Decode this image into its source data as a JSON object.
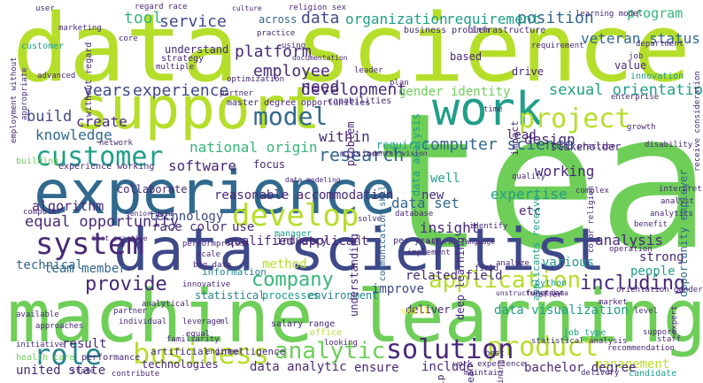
{
  "palette": {
    "lime": "#b5de2b",
    "green": "#6ece58",
    "teal_green": "#35b779",
    "teal": "#1f9e89",
    "blue_teal": "#26828e",
    "blue": "#31688e",
    "indigo": "#3e4989",
    "purple": "#482878",
    "dark_purple": "#440154",
    "yellow": "#fde725"
  },
  "words": [
    {
      "text": "data science",
      "color": "lime"
    },
    {
      "text": "team",
      "color": "green"
    },
    {
      "text": "machine learning",
      "color": "green"
    },
    {
      "text": "data scientist",
      "color": "indigo"
    },
    {
      "text": "experience",
      "color": "blue"
    },
    {
      "text": "support",
      "color": "lime"
    },
    {
      "text": "work",
      "color": "teal"
    },
    {
      "text": "customer",
      "color": "teal"
    },
    {
      "text": "project",
      "color": "lime"
    },
    {
      "text": "develop",
      "color": "lime"
    },
    {
      "text": "system",
      "color": "purple"
    },
    {
      "text": "product",
      "color": "lime"
    },
    {
      "text": "solution",
      "color": "purple"
    },
    {
      "text": "business",
      "color": "lime"
    },
    {
      "text": "role",
      "color": "blue_teal"
    },
    {
      "text": "analytic",
      "color": "green"
    },
    {
      "text": "application",
      "color": "lime"
    },
    {
      "text": "model",
      "color": "blue"
    },
    {
      "text": "research",
      "color": "blue"
    },
    {
      "text": "company",
      "color": "teal_green"
    },
    {
      "text": "provide",
      "color": "purple"
    },
    {
      "text": "including",
      "color": "purple"
    },
    {
      "text": "computer science",
      "color": "blue"
    },
    {
      "text": "position",
      "color": "blue"
    },
    {
      "text": "service",
      "color": "indigo"
    },
    {
      "text": "tool",
      "color": "teal_green"
    },
    {
      "text": "data",
      "color": "indigo"
    },
    {
      "text": "organization",
      "color": "teal"
    },
    {
      "text": "requirement",
      "color": "teal"
    },
    {
      "text": "platform",
      "color": "purple"
    },
    {
      "text": "employee",
      "color": "purple"
    },
    {
      "text": "years",
      "color": "indigo"
    },
    {
      "text": "experience",
      "color": "indigo"
    },
    {
      "text": "need",
      "color": "purple"
    },
    {
      "text": "development",
      "color": "purple"
    },
    {
      "text": "gender identity",
      "color": "green"
    },
    {
      "text": "sexual orientation",
      "color": "teal"
    },
    {
      "text": "veteran status",
      "color": "blue"
    },
    {
      "text": "program",
      "color": "teal_green"
    },
    {
      "text": "build",
      "color": "indigo"
    },
    {
      "text": "create",
      "color": "purple"
    },
    {
      "text": "knowledge",
      "color": "blue"
    },
    {
      "text": "national origin",
      "color": "teal_green"
    },
    {
      "text": "software",
      "color": "purple"
    },
    {
      "text": "equal opportunity",
      "color": "purple"
    },
    {
      "text": "technology",
      "color": "indigo"
    },
    {
      "text": "algorithm",
      "color": "purple"
    },
    {
      "text": "team member",
      "color": "blue"
    },
    {
      "text": "technical",
      "color": "blue"
    },
    {
      "text": "analysis",
      "color": "purple"
    },
    {
      "text": "design",
      "color": "purple"
    },
    {
      "text": "insight",
      "color": "purple"
    },
    {
      "text": "data set",
      "color": "blue"
    },
    {
      "text": "expertise",
      "color": "teal"
    },
    {
      "text": "working",
      "color": "purple"
    },
    {
      "text": "new",
      "color": "purple"
    },
    {
      "text": "well",
      "color": "teal"
    },
    {
      "text": "within",
      "color": "purple"
    },
    {
      "text": "related field",
      "color": "purple"
    },
    {
      "text": "improve",
      "color": "indigo"
    },
    {
      "text": "data visualization",
      "color": "teal"
    },
    {
      "text": "management",
      "color": "lime"
    },
    {
      "text": "bachelor degree",
      "color": "purple"
    },
    {
      "text": "include",
      "color": "purple"
    },
    {
      "text": "ensure",
      "color": "purple"
    },
    {
      "text": "data analytic",
      "color": "purple"
    },
    {
      "text": "united state",
      "color": "purple"
    },
    {
      "text": "result",
      "color": "purple"
    },
    {
      "text": "use",
      "color": "purple"
    },
    {
      "text": "method",
      "color": "lime"
    },
    {
      "text": "strong",
      "color": "purple"
    },
    {
      "text": "people",
      "color": "teal"
    },
    {
      "text": "various",
      "color": "teal"
    },
    {
      "text": "etc",
      "color": "purple"
    },
    {
      "text": "reasonable accommodation",
      "color": "purple"
    },
    {
      "text": "qualified applicant",
      "color": "purple"
    },
    {
      "text": "race color",
      "color": "purple"
    },
    {
      "text": "collaborate",
      "color": "purple"
    },
    {
      "text": "lead",
      "color": "purple"
    },
    {
      "text": "required",
      "color": "teal"
    },
    {
      "text": "industry",
      "color": "purple"
    },
    {
      "text": "deliver",
      "color": "purple"
    },
    {
      "text": "technologies",
      "color": "purple"
    },
    {
      "text": "understand",
      "color": "purple"
    },
    {
      "text": "based",
      "color": "purple"
    },
    {
      "text": "drive",
      "color": "purple"
    },
    {
      "text": "value",
      "color": "purple"
    },
    {
      "text": "focus",
      "color": "purple"
    },
    {
      "text": "stakeholder",
      "color": "purple"
    },
    {
      "text": "across",
      "color": "blue"
    },
    {
      "text": "processes",
      "color": "teal"
    },
    {
      "text": "statistical",
      "color": "blue_teal"
    },
    {
      "text": "environment",
      "color": "blue_teal"
    },
    {
      "text": "salary range",
      "color": "purple"
    },
    {
      "text": "artificial intelligence",
      "color": "purple"
    },
    {
      "text": "manager",
      "color": "teal"
    },
    {
      "text": "per year",
      "color": "purple"
    },
    {
      "text": "mission",
      "color": "purple"
    },
    {
      "text": "capabilities",
      "color": "purple"
    },
    {
      "text": "master degree",
      "color": "purple"
    },
    {
      "text": "opportunities",
      "color": "purple"
    },
    {
      "text": "information",
      "color": "blue_teal"
    },
    {
      "text": "communication skill",
      "color": "blue"
    },
    {
      "text": "data analysis",
      "color": "teal"
    },
    {
      "text": "understanding",
      "color": "purple"
    },
    {
      "text": "deep learning",
      "color": "purple"
    },
    {
      "text": "opportunity employer",
      "color": "blue"
    },
    {
      "text": "applicants receive",
      "color": "teal"
    },
    {
      "text": "problem",
      "color": "purple"
    },
    {
      "text": "skill",
      "color": "yellow"
    },
    {
      "text": "office",
      "color": "lime"
    },
    {
      "text": "python",
      "color": "teal"
    },
    {
      "text": "health care",
      "color": "green"
    },
    {
      "text": "performance",
      "color": "purple"
    },
    {
      "text": "candidate",
      "color": "teal"
    },
    {
      "text": "area",
      "color": "purple"
    },
    {
      "text": "help",
      "color": "purple"
    },
    {
      "text": "job type",
      "color": "teal"
    },
    {
      "text": "impact",
      "color": "purple"
    },
    {
      "text": "innovation",
      "color": "teal"
    },
    {
      "text": "religion sex",
      "color": "purple"
    },
    {
      "text": "regard race",
      "color": "purple"
    },
    {
      "text": "without regard",
      "color": "purple"
    },
    {
      "text": "infrastructure",
      "color": "purple"
    },
    {
      "text": "business problem",
      "color": "purple"
    },
    {
      "text": "customer",
      "color": "teal"
    },
    {
      "text": "strategy",
      "color": "purple"
    },
    {
      "text": "partner",
      "color": "purple"
    },
    {
      "text": "time",
      "color": "purple"
    },
    {
      "text": "plan",
      "color": "purple"
    },
    {
      "text": "leader",
      "color": "purple"
    },
    {
      "text": "network",
      "color": "purple"
    },
    {
      "text": "building",
      "color": "green"
    },
    {
      "text": "approaches",
      "color": "purple"
    },
    {
      "text": "initiative",
      "color": "purple"
    },
    {
      "text": "contribute",
      "color": "purple"
    },
    {
      "text": "state",
      "color": "purple"
    },
    {
      "text": "delivery",
      "color": "purple"
    },
    {
      "text": "maintain",
      "color": "purple"
    },
    {
      "text": "statistical analysis",
      "color": "purple"
    },
    {
      "text": "work experience",
      "color": "purple"
    },
    {
      "text": "recommendation",
      "color": "purple"
    },
    {
      "text": "looking",
      "color": "purple"
    },
    {
      "text": "marketing",
      "color": "purple"
    },
    {
      "text": "user",
      "color": "purple"
    },
    {
      "text": "analytical",
      "color": "purple"
    },
    {
      "text": "available",
      "color": "purple"
    },
    {
      "text": "engineer",
      "color": "purple"
    },
    {
      "text": "multiple",
      "color": "purple"
    },
    {
      "text": "advanced",
      "color": "purple"
    },
    {
      "text": "perform",
      "color": "purple"
    },
    {
      "text": "process",
      "color": "purple"
    },
    {
      "text": "scale",
      "color": "purple"
    },
    {
      "text": "senior data",
      "color": "purple"
    },
    {
      "text": "big data",
      "color": "purple"
    },
    {
      "text": "natural language",
      "color": "purple"
    },
    {
      "text": "database",
      "color": "purple"
    },
    {
      "text": "solve",
      "color": "purple"
    },
    {
      "text": "identify",
      "color": "purple"
    },
    {
      "text": "quality",
      "color": "purple"
    },
    {
      "text": "best practice",
      "color": "purple"
    },
    {
      "text": "innovative",
      "color": "purple"
    },
    {
      "text": "optimization",
      "color": "purple"
    },
    {
      "text": "growth",
      "color": "purple"
    },
    {
      "text": "learning model",
      "color": "purple"
    },
    {
      "text": "practice",
      "color": "purple"
    },
    {
      "text": "data modeling",
      "color": "purple"
    },
    {
      "text": "analyze",
      "color": "purple"
    },
    {
      "text": "field",
      "color": "purple"
    },
    {
      "text": "function",
      "color": "purple"
    },
    {
      "text": "market",
      "color": "purple"
    },
    {
      "text": "level",
      "color": "purple"
    },
    {
      "text": "staff",
      "color": "purple"
    },
    {
      "text": "culture",
      "color": "purple"
    },
    {
      "text": "complex",
      "color": "purple"
    },
    {
      "text": "operation",
      "color": "purple"
    },
    {
      "text": "using",
      "color": "purple"
    },
    {
      "text": "experience working",
      "color": "purple"
    },
    {
      "text": "orientation gender",
      "color": "purple"
    },
    {
      "text": "color religion",
      "color": "purple"
    },
    {
      "text": "unstructured data",
      "color": "purple"
    },
    {
      "text": "dental vision",
      "color": "purple"
    },
    {
      "text": "expert",
      "color": "purple"
    },
    {
      "text": "enterprise",
      "color": "purple"
    },
    {
      "text": "job",
      "color": "purple"
    },
    {
      "text": "disability",
      "color": "purple"
    },
    {
      "text": "department",
      "color": "purple"
    },
    {
      "text": "offer",
      "color": "purple"
    },
    {
      "text": "training",
      "color": "purple"
    },
    {
      "text": "interpret",
      "color": "purple"
    },
    {
      "text": "analyst",
      "color": "purple"
    },
    {
      "text": "computer",
      "color": "purple"
    },
    {
      "text": "core",
      "color": "purple"
    },
    {
      "text": "best",
      "color": "purple"
    },
    {
      "text": "appropriate",
      "color": "purple"
    },
    {
      "text": "employment without",
      "color": "purple"
    },
    {
      "text": "receive consideration",
      "color": "purple"
    },
    {
      "text": "equal",
      "color": "purple"
    },
    {
      "text": "leverage",
      "color": "purple"
    },
    {
      "text": "familiarity",
      "color": "purple"
    },
    {
      "text": "individual",
      "color": "purple"
    },
    {
      "text": "implement",
      "color": "purple"
    },
    {
      "text": "ml",
      "color": "purple"
    },
    {
      "text": "benefit",
      "color": "purple"
    },
    {
      "text": "support",
      "color": "purple"
    },
    {
      "text": "partner",
      "color": "purple"
    },
    {
      "text": "practice",
      "color": "purple"
    },
    {
      "text": "analytics",
      "color": "purple"
    },
    {
      "text": "documentation",
      "color": "purple"
    },
    {
      "text": "requirement",
      "color": "purple"
    }
  ]
}
